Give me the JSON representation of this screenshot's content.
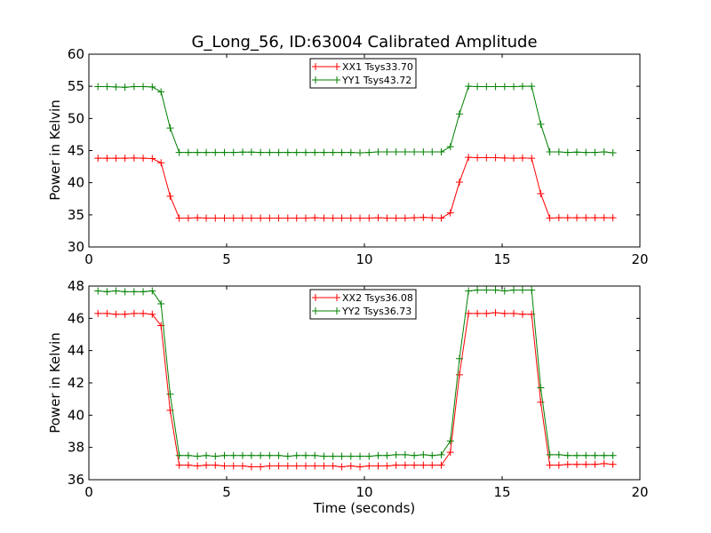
{
  "chart_data": [
    {
      "type": "line",
      "title": "G_Long_56, ID:63004 Calibrated Amplitude",
      "xlabel": "",
      "ylabel": "Power in Kelvin",
      "xlim": [
        0,
        20
      ],
      "ylim": [
        30,
        60
      ],
      "xticks": [
        "0",
        "5",
        "10",
        "15",
        "20"
      ],
      "yticks": [
        "30",
        "35",
        "40",
        "45",
        "50",
        "55",
        "60"
      ],
      "grid": false,
      "legend_position": "top-center",
      "x": [
        0.33,
        0.66,
        0.98,
        1.31,
        1.64,
        1.97,
        2.3,
        2.62,
        2.95,
        3.28,
        3.61,
        3.94,
        4.26,
        4.59,
        4.92,
        5.25,
        5.58,
        5.9,
        6.23,
        6.56,
        6.89,
        7.22,
        7.54,
        7.87,
        8.2,
        8.53,
        8.86,
        9.18,
        9.51,
        9.84,
        10.17,
        10.5,
        10.82,
        11.15,
        11.48,
        11.81,
        12.14,
        12.46,
        12.79,
        13.12,
        13.45,
        13.78,
        14.1,
        14.43,
        14.76,
        15.09,
        15.42,
        15.74,
        16.07,
        16.4,
        16.73,
        17.06,
        17.38,
        17.71,
        18.04,
        18.37,
        18.7,
        19.02
      ],
      "series": [
        {
          "name": "XX1 Tsys33.70",
          "color": "#ff0000",
          "values": [
            43.8,
            43.8,
            43.8,
            43.8,
            43.85,
            43.8,
            43.75,
            43.1,
            37.9,
            34.5,
            34.5,
            34.55,
            34.5,
            34.5,
            34.5,
            34.5,
            34.5,
            34.5,
            34.5,
            34.5,
            34.5,
            34.5,
            34.5,
            34.5,
            34.55,
            34.5,
            34.5,
            34.5,
            34.5,
            34.5,
            34.5,
            34.55,
            34.5,
            34.5,
            34.5,
            34.55,
            34.6,
            34.55,
            34.5,
            35.3,
            40.1,
            43.95,
            43.9,
            43.9,
            43.9,
            43.85,
            43.8,
            43.85,
            43.8,
            38.3,
            34.5,
            34.55,
            34.55,
            34.55,
            34.55,
            34.55,
            34.55,
            34.55
          ]
        },
        {
          "name": "YY1 Tsys43.72",
          "color": "#008000",
          "values": [
            54.95,
            54.95,
            54.9,
            54.85,
            54.95,
            54.95,
            54.9,
            54.15,
            48.5,
            44.7,
            44.7,
            44.7,
            44.7,
            44.7,
            44.7,
            44.7,
            44.75,
            44.75,
            44.7,
            44.7,
            44.7,
            44.7,
            44.7,
            44.7,
            44.7,
            44.7,
            44.7,
            44.7,
            44.7,
            44.65,
            44.7,
            44.8,
            44.8,
            44.8,
            44.8,
            44.8,
            44.8,
            44.8,
            44.8,
            45.6,
            50.7,
            55.0,
            54.95,
            54.95,
            54.95,
            54.95,
            54.95,
            55.0,
            55.0,
            49.1,
            44.8,
            44.8,
            44.7,
            44.75,
            44.7,
            44.7,
            44.8,
            44.65
          ]
        }
      ]
    },
    {
      "type": "line",
      "title": "",
      "xlabel": "Time (seconds)",
      "ylabel": "Power in Kelvin",
      "xlim": [
        0,
        20
      ],
      "ylim": [
        36,
        48
      ],
      "xticks": [
        "0",
        "5",
        "10",
        "15",
        "20"
      ],
      "yticks": [
        "36",
        "38",
        "40",
        "42",
        "44",
        "46",
        "48"
      ],
      "grid": false,
      "legend_position": "top-center",
      "x": [
        0.33,
        0.66,
        0.98,
        1.31,
        1.64,
        1.97,
        2.3,
        2.62,
        2.95,
        3.28,
        3.61,
        3.94,
        4.26,
        4.59,
        4.92,
        5.25,
        5.58,
        5.9,
        6.23,
        6.56,
        6.89,
        7.22,
        7.54,
        7.87,
        8.2,
        8.53,
        8.86,
        9.18,
        9.51,
        9.84,
        10.17,
        10.5,
        10.82,
        11.15,
        11.48,
        11.81,
        12.14,
        12.46,
        12.79,
        13.12,
        13.45,
        13.78,
        14.1,
        14.43,
        14.76,
        15.09,
        15.42,
        15.74,
        16.07,
        16.4,
        16.73,
        17.06,
        17.38,
        17.71,
        18.04,
        18.37,
        18.7,
        19.02
      ],
      "series": [
        {
          "name": "XX2 Tsys36.08",
          "color": "#ff0000",
          "values": [
            46.3,
            46.3,
            46.25,
            46.25,
            46.3,
            46.3,
            46.25,
            45.55,
            40.3,
            36.9,
            36.9,
            36.85,
            36.9,
            36.9,
            36.85,
            36.85,
            36.85,
            36.8,
            36.8,
            36.85,
            36.85,
            36.85,
            36.85,
            36.85,
            36.85,
            36.85,
            36.85,
            36.8,
            36.85,
            36.8,
            36.85,
            36.85,
            36.85,
            36.9,
            36.9,
            36.9,
            36.9,
            36.9,
            36.9,
            37.7,
            42.5,
            46.3,
            46.3,
            46.3,
            46.35,
            46.3,
            46.3,
            46.25,
            46.25,
            40.8,
            36.9,
            36.9,
            36.95,
            36.95,
            36.95,
            36.95,
            37.0,
            36.95
          ]
        },
        {
          "name": "YY2 Tsys36.73",
          "color": "#008000",
          "values": [
            47.7,
            47.65,
            47.7,
            47.65,
            47.65,
            47.65,
            47.7,
            46.9,
            41.3,
            37.5,
            37.5,
            37.45,
            37.5,
            37.45,
            37.5,
            37.5,
            37.5,
            37.5,
            37.5,
            37.5,
            37.5,
            37.45,
            37.5,
            37.5,
            37.5,
            37.45,
            37.45,
            37.45,
            37.45,
            37.45,
            37.45,
            37.5,
            37.5,
            37.55,
            37.55,
            37.5,
            37.55,
            37.5,
            37.55,
            38.4,
            43.5,
            47.7,
            47.75,
            47.75,
            47.75,
            47.7,
            47.75,
            47.75,
            47.75,
            41.7,
            37.55,
            37.55,
            37.5,
            37.5,
            37.5,
            37.5,
            37.5,
            37.5
          ]
        }
      ]
    }
  ]
}
